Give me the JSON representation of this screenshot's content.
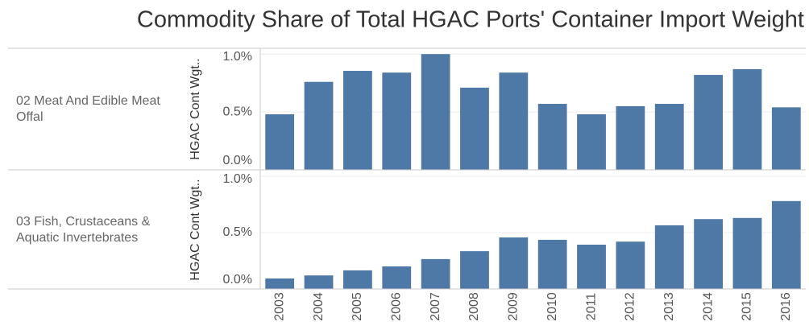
{
  "title": "Commodity Share of Total HGAC Ports' Container Import Weight",
  "chart_data": [
    {
      "type": "bar",
      "row_label": "02 Meat And Edible Meat Offal",
      "y_label": "HGAC Cont Wgt..",
      "color": "#4e79a7",
      "values": [
        0.48,
        0.76,
        0.855,
        0.84,
        1.0,
        0.71,
        0.84,
        0.57,
        0.48,
        0.55,
        0.57,
        0.82,
        0.87,
        0.54
      ],
      "ylim": [
        0,
        1.05
      ],
      "yticks": [
        {
          "value": 0,
          "label": "0.0%"
        },
        {
          "value": 0.5,
          "label": "0.5%"
        },
        {
          "value": 1.0,
          "label": "1.0%"
        }
      ],
      "grid": true
    },
    {
      "type": "bar",
      "row_label": "03 Fish, Crustaceans & Aquatic Invertebrates",
      "y_label": "HGAC Cont Wgt..",
      "color": "#4e79a7",
      "categories": [
        "2003",
        "2004",
        "2005",
        "2006",
        "2007",
        "2008",
        "2009",
        "2010",
        "2011",
        "2012",
        "2013",
        "2014",
        "2015",
        "2016"
      ],
      "values": [
        0.093,
        0.12,
        0.165,
        0.2,
        0.265,
        0.335,
        0.457,
        0.436,
        0.393,
        0.42,
        0.565,
        0.62,
        0.63,
        0.78
      ],
      "ylim": [
        0,
        1.05
      ],
      "yticks": [
        {
          "value": 0,
          "label": "0.0%"
        },
        {
          "value": 0.5,
          "label": "0.5%"
        },
        {
          "value": 1.0,
          "label": "1.0%"
        }
      ],
      "grid": true
    }
  ]
}
